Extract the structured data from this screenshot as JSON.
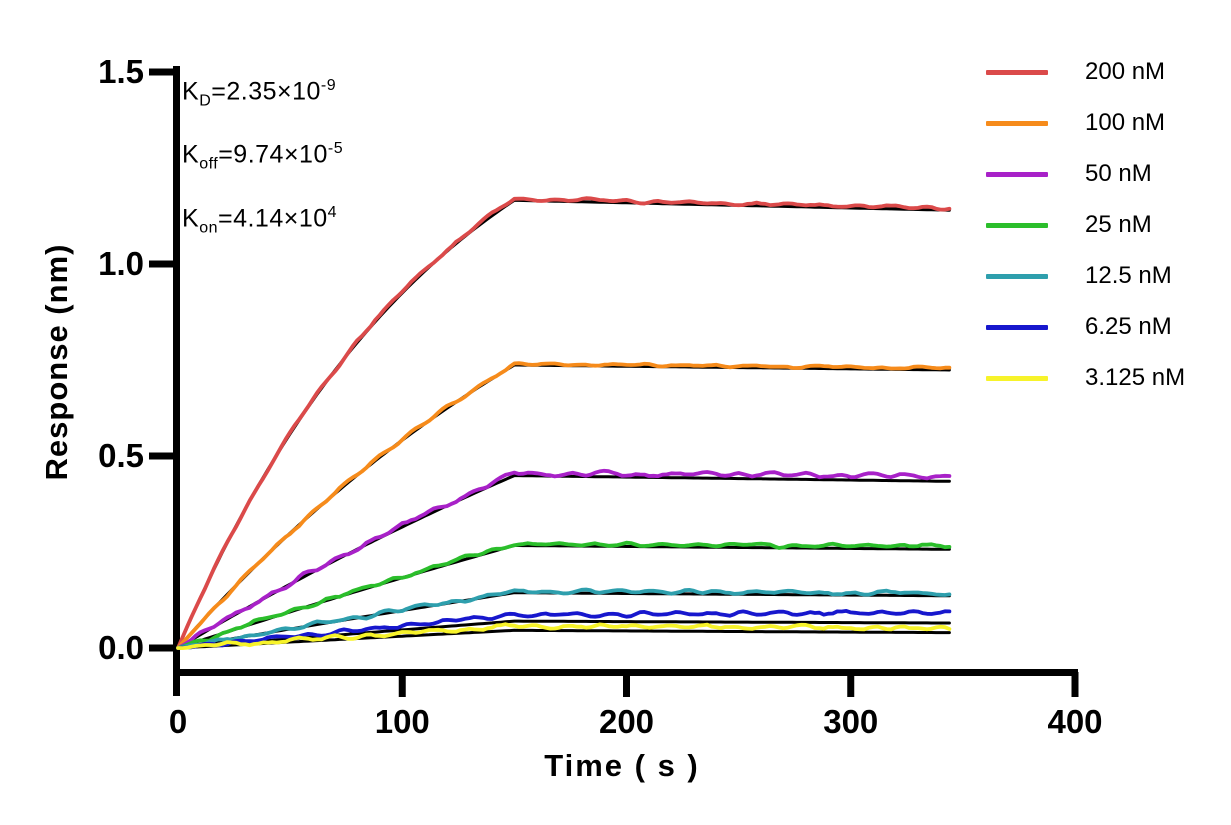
{
  "figure": {
    "background": "#ffffff",
    "annotation": {
      "lines": [
        {
          "base": "K",
          "sub": "D",
          "mid": "=2.35×10",
          "sup": "-9"
        },
        {
          "base": "K",
          "sub": "off",
          "mid": "=9.74×10",
          "sup": "-5"
        },
        {
          "base": "K",
          "sub": "on",
          "mid": "=4.14×10",
          "sup": "4"
        }
      ]
    }
  },
  "chart_data": {
    "type": "line",
    "title": "",
    "xlabel": "Time ( s )",
    "ylabel": "Response (nm)",
    "xlim": [
      0,
      400
    ],
    "ylim": [
      0,
      1.5
    ],
    "x_ticks": [
      0,
      100,
      200,
      300,
      400
    ],
    "y_ticks": [
      "0.0",
      "0.5",
      "1.0",
      "1.5"
    ],
    "grid": false,
    "legend_position": "outside-right",
    "axis_color": "#000000",
    "fit_color": "#000000",
    "kinetics": {
      "KD_M": 2.35e-09,
      "koff_per_s": 9.74e-05,
      "kon_per_M_per_s": 41400
    },
    "phases": {
      "association_start_s": 0,
      "association_end_s": 150,
      "dissociation_end_s": 344
    },
    "series": [
      {
        "label": "200 nM",
        "concentration_nM": 200,
        "color": "#DB4A4A",
        "response_at_150s": 1.17,
        "response_at_344s": 1.146,
        "fit_at_150s": 1.166,
        "fit_at_344s": 1.14,
        "noise_amplitude": 0.005
      },
      {
        "label": "100 nM",
        "concentration_nM": 100,
        "color": "#F68B1B",
        "response_at_150s": 0.74,
        "response_at_344s": 0.729,
        "fit_at_150s": 0.737,
        "fit_at_344s": 0.724,
        "noise_amplitude": 0.005
      },
      {
        "label": "50 nM",
        "concentration_nM": 50,
        "color": "#A821C8",
        "response_at_150s": 0.455,
        "response_at_344s": 0.448,
        "fit_at_150s": 0.449,
        "fit_at_344s": 0.434,
        "noise_amplitude": 0.008
      },
      {
        "label": "25 nM",
        "concentration_nM": 25,
        "color": "#2BBE2B",
        "response_at_150s": 0.271,
        "response_at_344s": 0.265,
        "fit_at_150s": 0.267,
        "fit_at_344s": 0.257,
        "noise_amplitude": 0.006
      },
      {
        "label": "12.5 nM",
        "concentration_nM": 12.5,
        "color": "#2E9FAD",
        "response_at_150s": 0.148,
        "response_at_344s": 0.142,
        "fit_at_150s": 0.144,
        "fit_at_344s": 0.136,
        "noise_amplitude": 0.006
      },
      {
        "label": "6.25 nM",
        "concentration_nM": 6.25,
        "color": "#1717CD",
        "response_at_150s": 0.086,
        "response_at_344s": 0.092,
        "fit_at_150s": 0.07,
        "fit_at_344s": 0.065,
        "noise_amplitude": 0.007
      },
      {
        "label": "3.125 nM",
        "concentration_nM": 3.125,
        "color": "#F7F32A",
        "response_at_150s": 0.057,
        "response_at_344s": 0.052,
        "fit_at_150s": 0.046,
        "fit_at_344s": 0.04,
        "noise_amplitude": 0.007
      }
    ]
  }
}
